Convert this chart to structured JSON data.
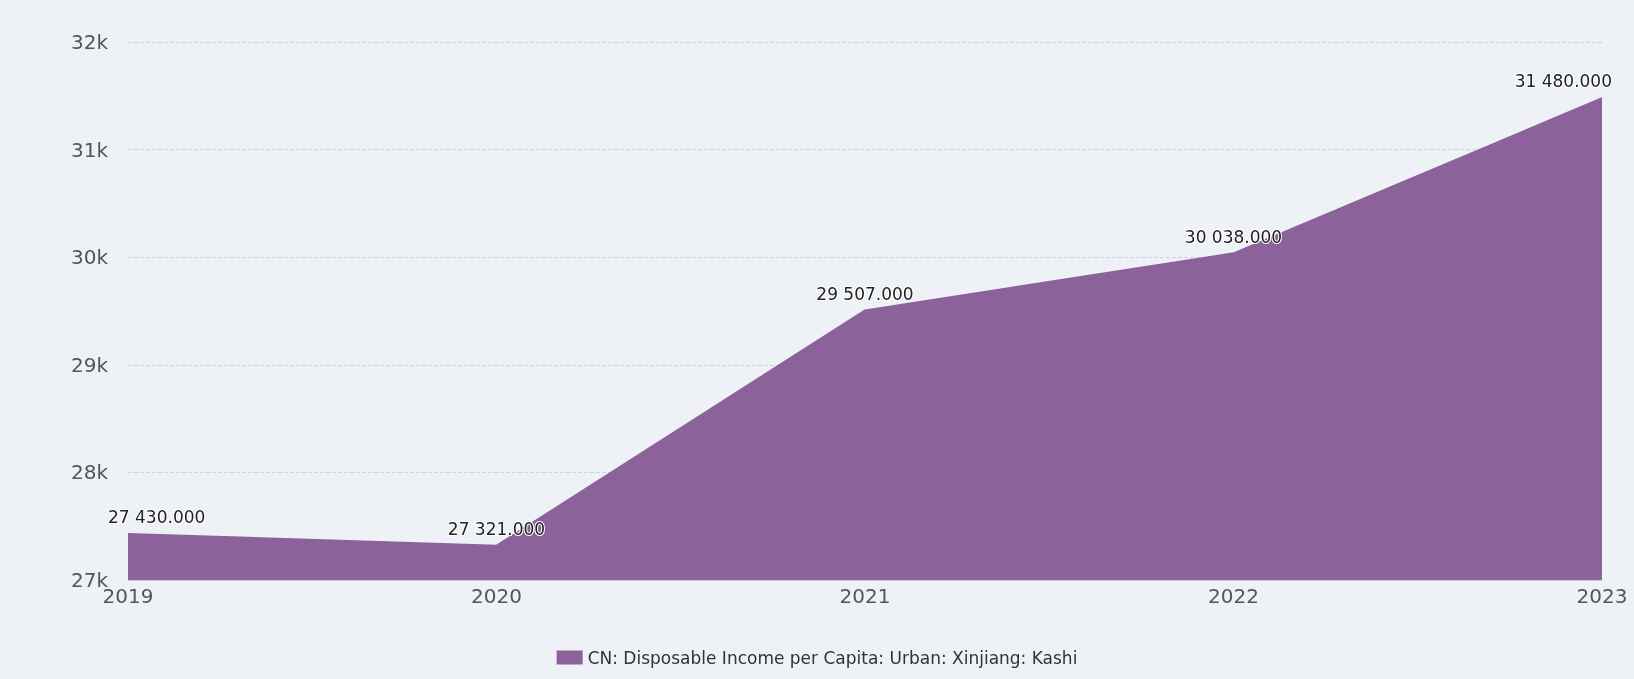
{
  "chart_data": {
    "type": "area",
    "categories": [
      "2019",
      "2020",
      "2021",
      "2022",
      "2023"
    ],
    "series": [
      {
        "name": "CN: Disposable Income per Capita: Urban: Xinjiang: Kashi",
        "color": "#8b6299",
        "values": [
          27430,
          27321,
          29507,
          30038,
          31480
        ],
        "value_labels": [
          "27 430.000",
          "27 321.000",
          "29 507.000",
          "30 038.000",
          "31 480.000"
        ]
      }
    ],
    "ylim": [
      27000,
      32000
    ],
    "yticks": [
      {
        "value": 27000,
        "label": "27k"
      },
      {
        "value": 28000,
        "label": "28k"
      },
      {
        "value": 29000,
        "label": "29k"
      },
      {
        "value": 30000,
        "label": "30k"
      },
      {
        "value": 31000,
        "label": "31k"
      },
      {
        "value": 32000,
        "label": "32k"
      }
    ],
    "grid": "y",
    "legend": "bottom",
    "marker": "none"
  }
}
